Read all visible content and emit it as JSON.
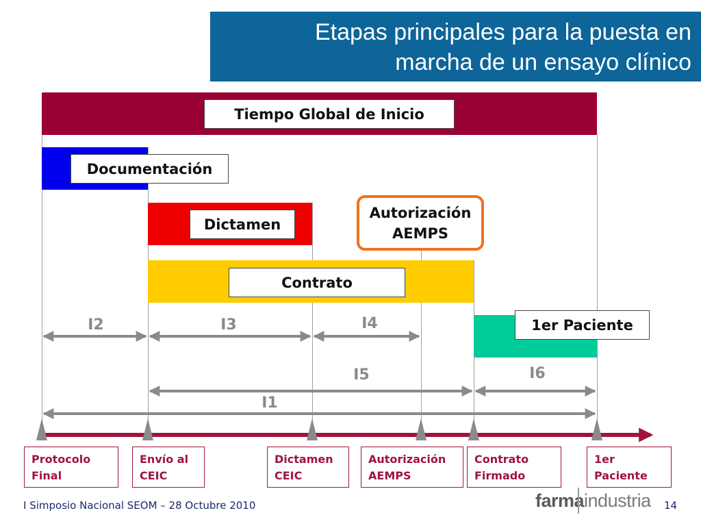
{
  "title": {
    "line1": "Etapas principales para la puesta en",
    "line2": "marcha de un ensayo clínico"
  },
  "bars": {
    "global": "Tiempo Global de Inicio",
    "documentacion": "Documentación",
    "dictamen": "Dictamen",
    "contrato": "Contrato",
    "autorizacion_line1": "Autorización",
    "autorizacion_line2": "AEMPS",
    "paciente": "1er Paciente"
  },
  "intervals": {
    "i1": "I1",
    "i2": "I2",
    "i3": "I3",
    "i4": "I4",
    "i5": "I5",
    "i6": "I6"
  },
  "milestones": [
    {
      "line1": "Protocolo",
      "line2": "Final"
    },
    {
      "line1": "Envío al",
      "line2": "CEIC"
    },
    {
      "line1": "Dictamen",
      "line2": "CEIC"
    },
    {
      "line1": "Autorización",
      "line2": "AEMPS"
    },
    {
      "line1": "Contrato",
      "line2": "Firmado"
    },
    {
      "line1": "1er",
      "line2": "Paciente"
    }
  ],
  "footer": {
    "left": "I Simposio Nacional SEOM – 28 Octubre 2010",
    "brand_bold": "farma",
    "brand_rest": "industria",
    "page": "14"
  },
  "colors": {
    "title_bg": "#0d6599",
    "global_bar": "#990033",
    "documentacion_bar": "#0000ee",
    "dictamen_bar": "#ee0000",
    "contrato_bar": "#ffcc00",
    "paciente_bar": "#00cc99",
    "autorizacion_border": "#f07020",
    "milestone_text": "#a0143c"
  }
}
